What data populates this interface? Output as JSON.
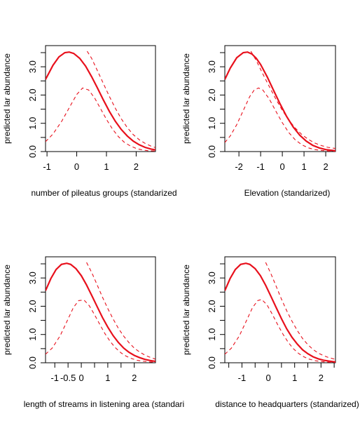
{
  "chart_data": [
    {
      "type": "line",
      "xlabel": "number of pileatus groups (standarized",
      "ylabel": "predicted lar abundance",
      "xlim": [
        -1.05,
        2.65
      ],
      "ylim": [
        0,
        3.55
      ],
      "xticks": [
        -1,
        0,
        1,
        2
      ],
      "yticks": [
        0.0,
        0.5,
        1.0,
        1.5,
        2.0,
        2.5,
        3.0,
        3.5
      ],
      "ytick_labels": [
        "0.0",
        "",
        "1.0",
        "",
        "2.0",
        "",
        "3.0",
        ""
      ],
      "series": [
        {
          "style": "solid",
          "color": "#e8101c",
          "x": [
            -1.05,
            -0.8,
            -0.6,
            -0.4,
            -0.25,
            -0.1,
            0.1,
            0.3,
            0.5,
            0.7,
            0.9,
            1.1,
            1.3,
            1.5,
            1.7,
            1.9,
            2.1,
            2.3,
            2.5,
            2.65
          ],
          "y": [
            2.55,
            3.05,
            3.35,
            3.5,
            3.52,
            3.47,
            3.3,
            3.02,
            2.65,
            2.24,
            1.82,
            1.42,
            1.07,
            0.78,
            0.55,
            0.37,
            0.24,
            0.15,
            0.09,
            0.06
          ]
        },
        {
          "style": "dashed",
          "color": "#e8101c",
          "x": [
            -1.05,
            -0.8,
            -0.5,
            -0.2,
            0.0,
            0.2,
            0.4,
            0.6,
            0.8,
            1.0,
            1.2,
            1.4,
            1.6,
            1.8,
            2.0,
            2.2,
            2.4,
            2.65
          ],
          "y": [
            0.35,
            0.62,
            1.08,
            1.65,
            2.02,
            2.25,
            2.18,
            1.9,
            1.52,
            1.14,
            0.8,
            0.53,
            0.33,
            0.2,
            0.11,
            0.06,
            0.03,
            0.02
          ]
        },
        {
          "style": "dashed",
          "color": "#e8101c",
          "x": [
            0.35,
            0.5,
            0.7,
            0.9,
            1.1,
            1.3,
            1.5,
            1.7,
            1.9,
            2.1,
            2.3,
            2.5,
            2.65
          ],
          "y": [
            3.55,
            3.3,
            2.85,
            2.4,
            1.95,
            1.53,
            1.16,
            0.85,
            0.6,
            0.42,
            0.29,
            0.19,
            0.14
          ]
        }
      ]
    },
    {
      "type": "line",
      "xlabel": "Elevation (standarized)",
      "ylabel": "predicted lar abundance",
      "xlim": [
        -2.65,
        2.45
      ],
      "ylim": [
        0,
        3.55
      ],
      "xticks": [
        -2,
        -1,
        0,
        1,
        2
      ],
      "yticks": [
        0.0,
        0.5,
        1.0,
        1.5,
        2.0,
        2.5,
        3.0,
        3.5
      ],
      "ytick_labels": [
        "0.0",
        "",
        "1.0",
        "",
        "2.0",
        "",
        "3.0",
        ""
      ],
      "series": [
        {
          "style": "solid",
          "color": "#e8101c",
          "x": [
            -2.65,
            -2.4,
            -2.1,
            -1.8,
            -1.6,
            -1.4,
            -1.2,
            -1.0,
            -0.7,
            -0.4,
            -0.1,
            0.2,
            0.5,
            0.8,
            1.1,
            1.4,
            1.7,
            2.0,
            2.2,
            2.45
          ],
          "y": [
            2.55,
            2.95,
            3.32,
            3.5,
            3.52,
            3.45,
            3.3,
            3.08,
            2.65,
            2.16,
            1.68,
            1.24,
            0.87,
            0.58,
            0.37,
            0.22,
            0.13,
            0.07,
            0.05,
            0.03
          ]
        },
        {
          "style": "dashed",
          "color": "#e8101c",
          "x": [
            -2.65,
            -2.4,
            -2.1,
            -1.8,
            -1.5,
            -1.3,
            -1.1,
            -0.9,
            -0.6,
            -0.3,
            0.0,
            0.3,
            0.6,
            0.9,
            1.2,
            1.5,
            1.8,
            2.1,
            2.45
          ],
          "y": [
            0.32,
            0.55,
            0.95,
            1.45,
            1.95,
            2.17,
            2.25,
            2.18,
            1.86,
            1.43,
            1.02,
            0.67,
            0.41,
            0.24,
            0.13,
            0.07,
            0.04,
            0.02,
            0.01
          ]
        },
        {
          "style": "dashed",
          "color": "#e8101c",
          "x": [
            -1.45,
            -1.2,
            -0.9,
            -0.6,
            -0.3,
            0.0,
            0.3,
            0.6,
            0.9,
            1.2,
            1.5,
            1.8,
            2.1,
            2.45
          ],
          "y": [
            3.55,
            3.22,
            2.75,
            2.3,
            1.86,
            1.46,
            1.11,
            0.83,
            0.6,
            0.43,
            0.3,
            0.21,
            0.15,
            0.11
          ]
        }
      ]
    },
    {
      "type": "line",
      "xlabel": "length of streams in listening area (standari",
      "ylabel": "predicted lar abundance",
      "xlim": [
        -1.35,
        2.8
      ],
      "ylim": [
        0,
        3.55
      ],
      "xticks": [
        -1,
        0,
        1,
        2
      ],
      "xtick_labels": [
        "-1",
        "0",
        "1",
        "2"
      ],
      "extra_xticks": [
        -0.5,
        0.5,
        1.5
      ],
      "extra_xtick_labels": [
        "-0.5",
        "",
        ""
      ],
      "yticks": [
        0.0,
        0.5,
        1.0,
        1.5,
        2.0,
        2.5,
        3.0,
        3.5
      ],
      "ytick_labels": [
        "0.0",
        "",
        "1.0",
        "",
        "2.0",
        "",
        "3.0",
        ""
      ],
      "series": [
        {
          "style": "solid",
          "color": "#e8101c",
          "x": [
            -1.35,
            -1.15,
            -0.95,
            -0.75,
            -0.55,
            -0.4,
            -0.2,
            0.0,
            0.2,
            0.4,
            0.6,
            0.8,
            1.0,
            1.2,
            1.4,
            1.6,
            1.8,
            2.0,
            2.2,
            2.4,
            2.6,
            2.8
          ],
          "y": [
            2.55,
            2.98,
            3.3,
            3.48,
            3.52,
            3.48,
            3.33,
            3.08,
            2.75,
            2.37,
            1.98,
            1.6,
            1.26,
            0.96,
            0.72,
            0.52,
            0.37,
            0.26,
            0.18,
            0.12,
            0.08,
            0.05
          ]
        },
        {
          "style": "dashed",
          "color": "#e8101c",
          "x": [
            -1.35,
            -1.1,
            -0.8,
            -0.5,
            -0.3,
            -0.1,
            0.1,
            0.3,
            0.5,
            0.7,
            0.9,
            1.1,
            1.3,
            1.5,
            1.7,
            1.9,
            2.1,
            2.3,
            2.55,
            2.8
          ],
          "y": [
            0.3,
            0.52,
            0.95,
            1.55,
            1.95,
            2.2,
            2.22,
            2.02,
            1.7,
            1.35,
            1.02,
            0.74,
            0.52,
            0.35,
            0.23,
            0.15,
            0.09,
            0.06,
            0.03,
            0.02
          ]
        },
        {
          "style": "dashed",
          "color": "#e8101c",
          "x": [
            0.2,
            0.4,
            0.6,
            0.8,
            1.0,
            1.2,
            1.4,
            1.6,
            1.8,
            2.0,
            2.2,
            2.4,
            2.6,
            2.8
          ],
          "y": [
            3.55,
            3.18,
            2.75,
            2.32,
            1.92,
            1.55,
            1.22,
            0.94,
            0.71,
            0.52,
            0.38,
            0.27,
            0.19,
            0.13
          ]
        }
      ]
    },
    {
      "type": "line",
      "xlabel": "distance to headquarters (standarized)",
      "ylabel": "predicted lar abundance",
      "xlim": [
        -1.65,
        2.55
      ],
      "ylim": [
        0,
        3.55
      ],
      "xticks": [
        -1,
        0,
        1,
        2
      ],
      "extra_xticks": [
        -1.5,
        -0.5,
        0.5,
        1.5,
        2.5
      ],
      "yticks": [
        0.0,
        0.5,
        1.0,
        1.5,
        2.0,
        2.5,
        3.0,
        3.5
      ],
      "ytick_labels": [
        "0.0",
        "",
        "1.0",
        "",
        "2.0",
        "",
        "3.0",
        ""
      ],
      "series": [
        {
          "style": "solid",
          "color": "#e8101c",
          "x": [
            -1.65,
            -1.45,
            -1.25,
            -1.05,
            -0.85,
            -0.7,
            -0.5,
            -0.3,
            -0.1,
            0.1,
            0.3,
            0.5,
            0.7,
            0.9,
            1.1,
            1.3,
            1.5,
            1.7,
            1.9,
            2.1,
            2.3,
            2.55
          ],
          "y": [
            2.55,
            2.98,
            3.3,
            3.48,
            3.52,
            3.48,
            3.33,
            3.08,
            2.74,
            2.35,
            1.95,
            1.56,
            1.2,
            0.9,
            0.66,
            0.46,
            0.32,
            0.21,
            0.14,
            0.09,
            0.06,
            0.03
          ]
        },
        {
          "style": "dashed",
          "color": "#e8101c",
          "x": [
            -1.65,
            -1.4,
            -1.1,
            -0.8,
            -0.6,
            -0.4,
            -0.25,
            -0.05,
            0.15,
            0.35,
            0.55,
            0.75,
            0.95,
            1.15,
            1.35,
            1.55,
            1.8,
            2.05,
            2.3,
            2.55
          ],
          "y": [
            0.3,
            0.52,
            0.95,
            1.55,
            1.95,
            2.2,
            2.24,
            2.05,
            1.72,
            1.36,
            1.02,
            0.73,
            0.5,
            0.33,
            0.21,
            0.13,
            0.07,
            0.04,
            0.02,
            0.01
          ]
        },
        {
          "style": "dashed",
          "color": "#e8101c",
          "x": [
            -0.1,
            0.1,
            0.3,
            0.5,
            0.7,
            0.9,
            1.1,
            1.3,
            1.5,
            1.7,
            1.9,
            2.1,
            2.3,
            2.55
          ],
          "y": [
            3.55,
            3.15,
            2.7,
            2.25,
            1.84,
            1.47,
            1.14,
            0.86,
            0.64,
            0.47,
            0.34,
            0.25,
            0.18,
            0.12
          ]
        }
      ]
    }
  ]
}
